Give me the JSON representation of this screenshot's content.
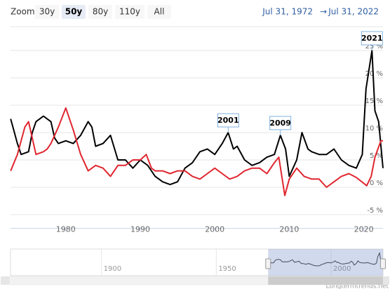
{
  "chart_data": {
    "type": "line",
    "zoom_label": "Zoom",
    "zoom_buttons": [
      "30y",
      "50y",
      "80y",
      "110y",
      "All"
    ],
    "zoom_selected": "50y",
    "range_from": "Jul 31, 1972",
    "range_arrow": "→",
    "range_to": "Jul 31, 2022",
    "credit": "Longtermtrends.net",
    "xlim": [
      1972.58,
      2022.58
    ],
    "xticks": [
      1980,
      1990,
      2000,
      2010,
      2020
    ],
    "ylim": [
      -7.5,
      30
    ],
    "yticks": [
      {
        "value": -5,
        "label": "-5 %"
      },
      {
        "value": 0,
        "label": "0 %"
      },
      {
        "value": 5,
        "label": "5 %"
      },
      {
        "value": 10,
        "label": "10 %"
      },
      {
        "value": 15,
        "label": "15 %"
      },
      {
        "value": 20,
        "label": "20 %"
      },
      {
        "value": 25,
        "label": "25 %"
      }
    ],
    "grid": true,
    "series": [
      {
        "color": "#000000",
        "x": [
          1972.6,
          1973,
          1973.5,
          1974,
          1975,
          1975.5,
          1976,
          1977,
          1978,
          1978.5,
          1979,
          1980,
          1981,
          1982,
          1983,
          1983.5,
          1984,
          1985,
          1986,
          1987,
          1988,
          1989,
          1990,
          1991,
          1992,
          1993,
          1994,
          1995,
          1996,
          1997,
          1998,
          1999,
          2000,
          2001,
          2001.8,
          2002.5,
          2003,
          2004,
          2005,
          2006,
          2007,
          2008,
          2008.8,
          2009.5,
          2010,
          2011,
          2011.7,
          2012.5,
          2013,
          2014,
          2015,
          2016,
          2017,
          2018,
          2019,
          2019.8,
          2020.3,
          2021.1,
          2021.5,
          2022,
          2022.58
        ],
        "values": [
          12.5,
          10.5,
          8,
          6,
          6.5,
          10,
          12,
          13,
          12,
          9,
          8,
          8.5,
          8,
          9.5,
          12,
          11,
          7.5,
          8,
          9.5,
          5,
          5,
          3.5,
          5,
          4,
          2,
          1,
          0.5,
          1,
          3.5,
          4.5,
          6.5,
          7,
          6,
          8,
          10,
          7,
          7.5,
          5,
          4,
          4.5,
          5.5,
          6,
          9.5,
          7,
          2,
          5,
          10,
          7,
          6.5,
          6,
          6,
          7,
          5,
          4,
          3.5,
          6,
          18,
          25,
          14,
          12,
          3.5
        ]
      },
      {
        "color": "#e0262f",
        "x": [
          1972.6,
          1973.5,
          1974.5,
          1975,
          1975.5,
          1976,
          1977,
          1977.5,
          1978,
          1979,
          1980,
          1981,
          1982,
          1983,
          1984,
          1985,
          1986,
          1987,
          1988,
          1989,
          1990,
          1990.8,
          1991.5,
          1992,
          1993,
          1994,
          1995,
          1996,
          1997,
          1998,
          1999,
          2000,
          2001,
          2002,
          2003,
          2004,
          2005,
          2006,
          2007,
          2008,
          2008.6,
          2009.4,
          2010,
          2011,
          2012,
          2013,
          2014,
          2015,
          2016,
          2017,
          2018,
          2019,
          2020.4,
          2021,
          2021.5,
          2022.3,
          2022.58
        ],
        "values": [
          3,
          6,
          11,
          12,
          9,
          6,
          6.5,
          7,
          8,
          11,
          14.5,
          10.5,
          6,
          3,
          4,
          3.5,
          2,
          4,
          4,
          5,
          5,
          6,
          3.5,
          3,
          3,
          2.5,
          3,
          3,
          2,
          1.5,
          2.5,
          3.5,
          2.5,
          1.5,
          2,
          3,
          3.5,
          3.5,
          2.5,
          4.5,
          5.5,
          -1.5,
          1.5,
          3.5,
          2,
          1.5,
          1.5,
          0,
          1,
          2,
          2.5,
          1.8,
          0.3,
          2,
          5.5,
          8.5,
          8.5
        ]
      }
    ],
    "annotations": [
      {
        "label": "2001",
        "x": 2001.8,
        "y": 10
      },
      {
        "label": "2009",
        "x": 2008.8,
        "y": 9.5
      },
      {
        "label": "2021",
        "x": 2021.1,
        "y": 25
      }
    ],
    "navigator": {
      "xlim": [
        1860.4,
        2022.6
      ],
      "xticks": [
        1900,
        1950,
        2000
      ]
    }
  }
}
